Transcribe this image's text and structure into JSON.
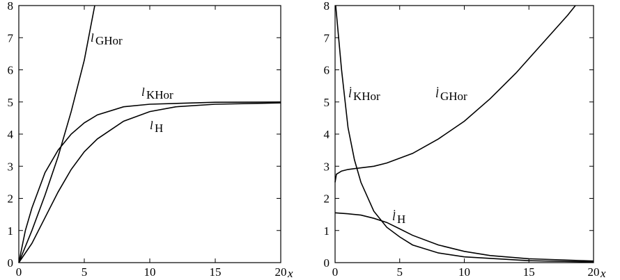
{
  "chart_data": [
    {
      "type": "line",
      "xlabel": "x",
      "xlim": [
        0,
        20
      ],
      "ylim": [
        0,
        8
      ],
      "xticks": [
        0,
        5,
        10,
        15,
        20
      ],
      "yticks": [
        0,
        1,
        2,
        3,
        4,
        5,
        6,
        7,
        8
      ],
      "series": [
        {
          "name": "l",
          "sub": "GHor",
          "color": "#000000",
          "x": [
            0,
            1,
            2,
            3,
            4,
            5,
            5.8
          ],
          "values": [
            0,
            1.0,
            2.1,
            3.3,
            4.7,
            6.3,
            8.0
          ]
        },
        {
          "name": "l",
          "sub": "KHor",
          "color": "#000000",
          "x": [
            0,
            0.5,
            1,
            2,
            3,
            4,
            5,
            6,
            8,
            10,
            15,
            20
          ],
          "values": [
            0,
            1.0,
            1.7,
            2.8,
            3.5,
            4.0,
            4.35,
            4.6,
            4.85,
            4.93,
            4.99,
            5.0
          ]
        },
        {
          "name": "l",
          "sub": "H",
          "color": "#000000",
          "x": [
            0,
            1,
            2,
            3,
            4,
            5,
            6,
            8,
            10,
            12,
            15,
            20
          ],
          "values": [
            0,
            0.6,
            1.4,
            2.2,
            2.9,
            3.45,
            3.85,
            4.4,
            4.7,
            4.85,
            4.93,
            4.97
          ]
        }
      ]
    },
    {
      "type": "line",
      "xlabel": "x",
      "xlim": [
        0,
        20
      ],
      "ylim": [
        0,
        8
      ],
      "xticks": [
        0,
        5,
        10,
        15,
        20
      ],
      "yticks": [
        0,
        1,
        2,
        3,
        4,
        5,
        6,
        7,
        8
      ],
      "series": [
        {
          "name": "l̇",
          "sub": "KHor",
          "color": "#000000",
          "x": [
            0.05,
            0.5,
            1,
            1.5,
            2,
            3,
            4,
            5,
            6,
            8,
            10,
            15,
            20
          ],
          "values": [
            8.0,
            6.0,
            4.2,
            3.2,
            2.5,
            1.6,
            1.1,
            0.8,
            0.55,
            0.3,
            0.18,
            0.06,
            0.02
          ]
        },
        {
          "name": "l̇",
          "sub": "GHor",
          "color": "#000000",
          "x": [
            0,
            0.1,
            0.5,
            1,
            2,
            3,
            4,
            6,
            8,
            10,
            12,
            14,
            16,
            18,
            18.6
          ],
          "values": [
            2.5,
            2.75,
            2.85,
            2.9,
            2.95,
            3.0,
            3.1,
            3.4,
            3.85,
            4.4,
            5.1,
            5.9,
            6.8,
            7.7,
            8.0
          ]
        },
        {
          "name": "l̇",
          "sub": "H",
          "color": "#000000",
          "x": [
            0,
            1,
            2,
            3,
            4,
            5,
            6,
            8,
            10,
            12,
            15,
            20
          ],
          "values": [
            1.55,
            1.52,
            1.48,
            1.38,
            1.25,
            1.05,
            0.85,
            0.55,
            0.35,
            0.22,
            0.12,
            0.05
          ]
        }
      ]
    }
  ]
}
